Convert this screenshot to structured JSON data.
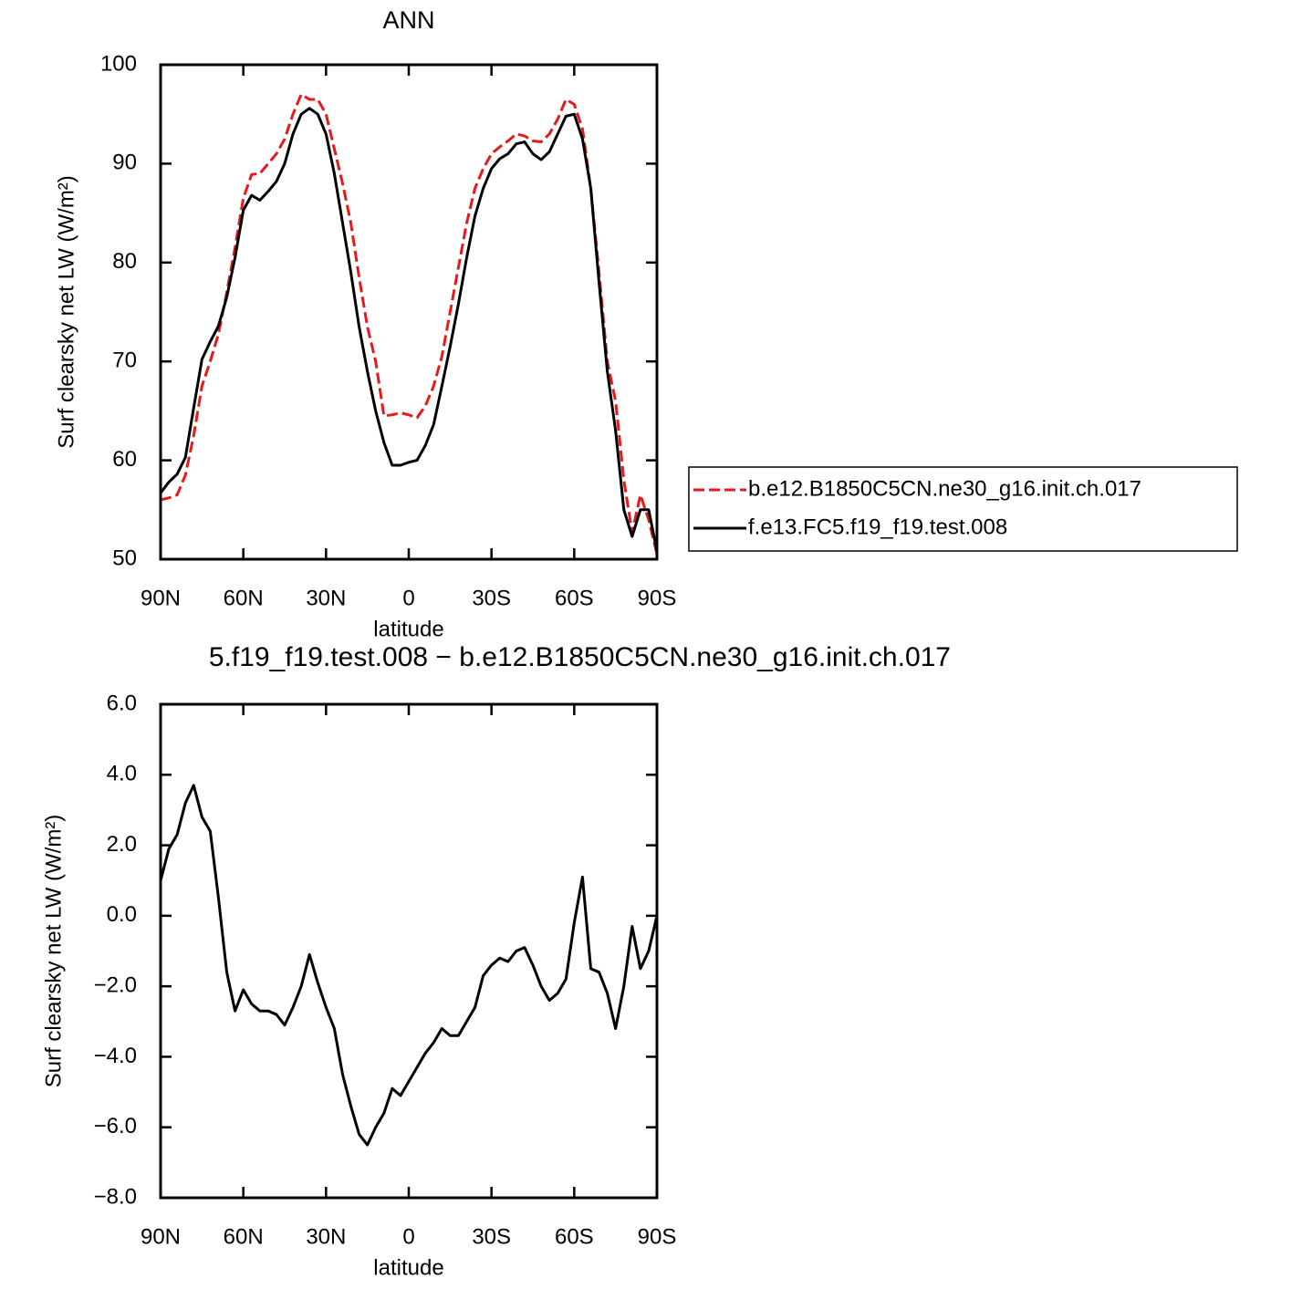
{
  "chart_data": [
    {
      "type": "line",
      "title": "ANN",
      "xlabel": "latitude",
      "ylabel": "Surf clearsky net LW (W/m²)",
      "x": [
        90,
        87,
        84,
        81,
        78,
        75,
        72,
        69,
        66,
        63,
        60,
        57,
        54,
        51,
        48,
        45,
        42,
        39,
        36,
        33,
        30,
        27,
        24,
        21,
        18,
        15,
        12,
        9,
        6,
        3,
        0,
        -3,
        -6,
        -9,
        -12,
        -15,
        -18,
        -21,
        -24,
        -27,
        -30,
        -33,
        -36,
        -39,
        -42,
        -45,
        -48,
        -51,
        -54,
        -57,
        -60,
        -63,
        -66,
        -69,
        -72,
        -75,
        -78,
        -81,
        -84,
        -87,
        -90
      ],
      "series": [
        {
          "name": "b.e12.B1850C5CN.ne30_g16.init.ch.017",
          "color": "#e41a1c",
          "style": "dashed",
          "values": [
            56.0,
            56.2,
            56.5,
            58.5,
            62.5,
            67.5,
            70.0,
            72.8,
            77.0,
            81.5,
            86.5,
            88.9,
            89.0,
            90.0,
            91.0,
            92.5,
            95.0,
            97.0,
            96.5,
            96.5,
            95.0,
            91.5,
            88.0,
            84.0,
            78.5,
            73.5,
            70.0,
            64.5,
            64.6,
            64.8,
            64.6,
            64.3,
            65.5,
            67.5,
            70.5,
            75.0,
            79.5,
            84.0,
            87.5,
            89.5,
            91.0,
            91.7,
            92.3,
            93.0,
            92.8,
            92.3,
            92.2,
            93.0,
            94.5,
            96.5,
            96.0,
            93.5,
            87.5,
            79.0,
            70.0,
            66.0,
            58.0,
            52.7,
            56.5,
            54.0,
            50.5
          ]
        },
        {
          "name": "f.e13.FC5.f19_f19.test.008",
          "color": "#000000",
          "style": "solid",
          "values": [
            56.7,
            57.8,
            58.6,
            60.3,
            65.3,
            70.2,
            72.0,
            73.6,
            76.5,
            80.5,
            85.3,
            86.8,
            86.3,
            87.2,
            88.2,
            90.0,
            93.0,
            95.0,
            95.6,
            95.0,
            93.0,
            89.0,
            84.0,
            79.0,
            73.5,
            69.0,
            65.0,
            61.8,
            59.5,
            59.5,
            59.8,
            60.0,
            61.5,
            63.6,
            67.5,
            71.5,
            75.8,
            80.5,
            84.7,
            87.5,
            89.5,
            90.5,
            91.0,
            92.0,
            92.2,
            91.0,
            90.4,
            91.2,
            93.0,
            94.8,
            95.0,
            92.5,
            87.5,
            78.0,
            69.0,
            63.0,
            55.0,
            52.3,
            55.0,
            55.0,
            50.8
          ]
        }
      ],
      "xlim": [
        90,
        -90
      ],
      "xticks": [
        {
          "value": 90,
          "label": "90N"
        },
        {
          "value": 60,
          "label": "60N"
        },
        {
          "value": 30,
          "label": "30N"
        },
        0,
        {
          "value": -30,
          "label": "30S"
        },
        {
          "value": -60,
          "label": "60S"
        },
        {
          "value": -90,
          "label": "90S"
        }
      ],
      "ylim": [
        50,
        100
      ],
      "yticks": [
        50,
        60,
        70,
        80,
        90,
        100
      ],
      "legend": "right"
    },
    {
      "type": "line",
      "title": "5.f19_f19.test.008 − b.e12.B1850C5CN.ne30_g16.init.ch.017",
      "xlabel": "latitude",
      "ylabel": "Surf clearsky net LW (W/m²)",
      "x": [
        90,
        87,
        84,
        81,
        78,
        75,
        72,
        69,
        66,
        63,
        60,
        57,
        54,
        51,
        48,
        45,
        42,
        39,
        36,
        33,
        30,
        27,
        24,
        21,
        18,
        15,
        12,
        9,
        6,
        3,
        0,
        -3,
        -6,
        -9,
        -12,
        -15,
        -18,
        -21,
        -24,
        -27,
        -30,
        -33,
        -36,
        -39,
        -42,
        -45,
        -48,
        -51,
        -54,
        -57,
        -60,
        -63,
        -66,
        -69,
        -72,
        -75,
        -78,
        -81,
        -84,
        -87,
        -90
      ],
      "series": [
        {
          "color": "#000000",
          "style": "solid",
          "values": [
            1.0,
            1.9,
            2.3,
            3.2,
            3.7,
            2.8,
            2.4,
            0.5,
            -1.6,
            -2.7,
            -2.1,
            -2.5,
            -2.7,
            -2.7,
            -2.8,
            -3.1,
            -2.6,
            -2.0,
            -1.1,
            -1.9,
            -2.6,
            -3.2,
            -4.5,
            -5.4,
            -6.2,
            -6.5,
            -6.0,
            -5.6,
            -4.9,
            -5.1,
            -4.7,
            -4.3,
            -3.9,
            -3.6,
            -3.2,
            -3.4,
            -3.4,
            -3.0,
            -2.6,
            -1.7,
            -1.4,
            -1.2,
            -1.3,
            -1.0,
            -0.9,
            -1.4,
            -2.0,
            -2.4,
            -2.2,
            -1.8,
            -0.2,
            1.1,
            -1.5,
            -1.6,
            -2.2,
            -3.2,
            -2.0,
            -0.3,
            -1.5,
            -1.0,
            0.0
          ]
        }
      ],
      "xlim": [
        90,
        -90
      ],
      "xticks": [
        {
          "value": 90,
          "label": "90N"
        },
        {
          "value": 60,
          "label": "60N"
        },
        {
          "value": 30,
          "label": "30N"
        },
        0,
        {
          "value": -30,
          "label": "30S"
        },
        {
          "value": -60,
          "label": "60S"
        },
        {
          "value": -90,
          "label": "90S"
        }
      ],
      "ylim": [
        -8,
        6
      ],
      "yticks": [
        {
          "value": -8,
          "label": "−8.0"
        },
        {
          "value": -6,
          "label": "−6.0"
        },
        {
          "value": -4,
          "label": "−4.0"
        },
        {
          "value": -2,
          "label": "−2.0"
        },
        {
          "value": 0,
          "label": "0.0"
        },
        {
          "value": 2,
          "label": "2.0"
        },
        {
          "value": 4,
          "label": "4.0"
        },
        {
          "value": 6,
          "label": "6.0"
        }
      ]
    }
  ]
}
